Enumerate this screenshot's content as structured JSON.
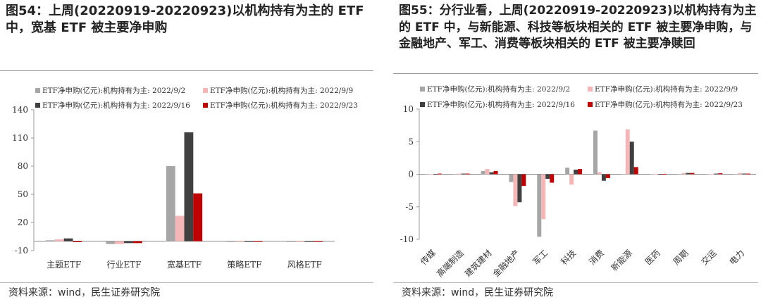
{
  "left": {
    "title": "图54：上周(20220919-20220923)以机构持有为主的 ETF 中，宽基 ETF 被主要净申购",
    "source": "资料来源：wind，民生证券研究院"
  },
  "right": {
    "title": "图55：分行业看，上周(20220919-20220923)以机构持有为主的 ETF 中，与新能源、科技等板块相关的 ETF 被主要净申购，与金融地产、军工、消费等板块相关的 ETF 被主要净赎回",
    "source": "资料来源：wind，民生证券研究院"
  },
  "colors": [
    "#a6a6a6",
    "#f4b6b6",
    "#404040",
    "#c00000"
  ],
  "chart_data": [
    {
      "type": "bar",
      "categories": [
        "主题ETF",
        "行业ETF",
        "宽基ETF",
        "策略ETF",
        "风格ETF"
      ],
      "series": [
        {
          "name": "ETF净申购(亿元):机构持有为主: 2022/9/2",
          "values": [
            1,
            -3,
            80,
            0,
            0
          ]
        },
        {
          "name": "ETF净申购(亿元):机构持有为主: 2022/9/9",
          "values": [
            2,
            -3,
            27,
            0,
            0
          ]
        },
        {
          "name": "ETF净申购(亿元):机构持有为主: 2022/9/16",
          "values": [
            3,
            -2,
            116,
            0,
            0
          ]
        },
        {
          "name": "ETF净申购(亿元):机构持有为主: 2022/9/23",
          "values": [
            -1,
            -2,
            51,
            0,
            0
          ]
        }
      ],
      "ylim": [
        -10,
        140
      ],
      "yticks": [
        "-10",
        "20",
        "50",
        "80",
        "110",
        "140"
      ],
      "legend": "top"
    },
    {
      "type": "bar",
      "categories": [
        "传媒",
        "高端制造",
        "建筑建材",
        "金融地产",
        "军工",
        "科技",
        "消费",
        "新能源",
        "医药",
        "周期",
        "交运",
        "电力"
      ],
      "series": [
        {
          "name": "ETF净申购(亿元):机构持有为主: 2022/9/2",
          "values": [
            0.05,
            0.05,
            0.5,
            -1.2,
            -9.6,
            1.0,
            6.7,
            0.05,
            0.05,
            0.05,
            0.05,
            0.05
          ]
        },
        {
          "name": "ETF净申购(亿元):机构持有为主: 2022/9/9",
          "values": [
            0.05,
            0.1,
            0.8,
            -4.9,
            -6.9,
            -1.6,
            0.3,
            6.9,
            0.05,
            0.2,
            0.05,
            0.2
          ]
        },
        {
          "name": "ETF净申购(亿元):机构持有为主: 2022/9/16",
          "values": [
            0.05,
            0.1,
            0.3,
            -4.3,
            -0.7,
            0.7,
            -1.0,
            5.0,
            0.05,
            0.2,
            0.1,
            0.1
          ]
        },
        {
          "name": "ETF净申购(亿元):机构持有为主: 2022/9/23",
          "values": [
            0.1,
            0.1,
            0.5,
            -1.8,
            -1.3,
            0.8,
            -0.6,
            1.1,
            0.05,
            0.2,
            0.15,
            0.1
          ]
        }
      ],
      "ylim": [
        -10,
        10
      ],
      "yticks": [
        "-10",
        "-5",
        "0",
        "5",
        "10"
      ],
      "legend": "top"
    }
  ]
}
